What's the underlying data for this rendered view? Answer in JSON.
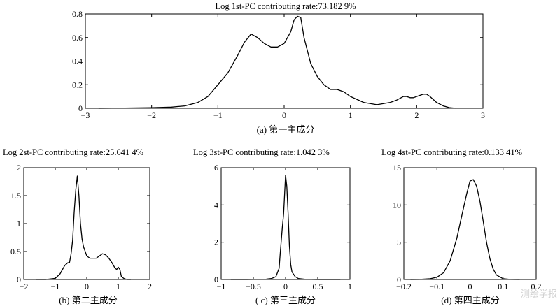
{
  "chart_data": [
    {
      "type": "line",
      "title": "Log 1st-PC   contributing rate:73.182 9%",
      "caption": "(a) 第一主成分",
      "xlim": [
        -3,
        3
      ],
      "ylim": [
        0,
        0.8
      ],
      "xticks": [
        "−3",
        "−2",
        "−1",
        "0",
        "1",
        "2",
        "3"
      ],
      "xtick_values": [
        -3,
        -2,
        -1,
        0,
        1,
        2,
        3
      ],
      "yticks": [
        "0",
        "0.2",
        "0.4",
        "0.6",
        "0.8"
      ],
      "ytick_values": [
        0,
        0.2,
        0.4,
        0.6,
        0.8
      ],
      "series": [
        {
          "x": [
            -2.8,
            -2.4,
            -2.0,
            -1.7,
            -1.5,
            -1.3,
            -1.15,
            -1.0,
            -0.85,
            -0.7,
            -0.6,
            -0.5,
            -0.4,
            -0.3,
            -0.2,
            -0.1,
            0.0,
            0.1,
            0.15,
            0.2,
            0.25,
            0.3,
            0.4,
            0.5,
            0.6,
            0.7,
            0.8,
            0.9,
            1.0,
            1.2,
            1.4,
            1.6,
            1.7,
            1.8,
            1.85,
            1.9,
            1.95,
            2.0,
            2.1,
            2.15,
            2.2,
            2.3,
            2.4,
            2.5,
            2.6
          ],
          "y": [
            0.0,
            0.002,
            0.005,
            0.01,
            0.02,
            0.05,
            0.1,
            0.2,
            0.3,
            0.45,
            0.56,
            0.63,
            0.6,
            0.55,
            0.52,
            0.52,
            0.55,
            0.65,
            0.75,
            0.78,
            0.77,
            0.6,
            0.38,
            0.27,
            0.2,
            0.16,
            0.16,
            0.14,
            0.1,
            0.05,
            0.03,
            0.05,
            0.07,
            0.1,
            0.1,
            0.09,
            0.09,
            0.1,
            0.12,
            0.12,
            0.1,
            0.05,
            0.02,
            0.005,
            0.0
          ]
        }
      ]
    },
    {
      "type": "line",
      "title": "Log 2st-PC  contributing rate:25.641 4%",
      "caption": "(b) 第二主成分",
      "xlim": [
        -2,
        2
      ],
      "ylim": [
        0,
        2
      ],
      "xticks": [
        "−2",
        "−1",
        "0",
        "1",
        "2"
      ],
      "xtick_values": [
        -2,
        -1,
        0,
        1,
        2
      ],
      "yticks": [
        "0",
        "0.5",
        "1",
        "1.5",
        "2"
      ],
      "ytick_values": [
        0,
        0.5,
        1,
        1.5,
        2
      ],
      "series": [
        {
          "x": [
            -1.6,
            -1.3,
            -1.0,
            -0.85,
            -0.7,
            -0.6,
            -0.55,
            -0.5,
            -0.45,
            -0.4,
            -0.35,
            -0.3,
            -0.25,
            -0.2,
            -0.15,
            -0.1,
            -0.05,
            0.0,
            0.1,
            0.2,
            0.3,
            0.4,
            0.5,
            0.6,
            0.7,
            0.8,
            0.9,
            0.95,
            1.0,
            1.05,
            1.1,
            1.2,
            1.3,
            1.4
          ],
          "y": [
            0.0,
            0.0,
            0.02,
            0.1,
            0.25,
            0.3,
            0.3,
            0.45,
            0.7,
            1.2,
            1.6,
            1.85,
            1.5,
            1.0,
            0.72,
            0.58,
            0.5,
            0.42,
            0.38,
            0.38,
            0.38,
            0.42,
            0.46,
            0.44,
            0.38,
            0.3,
            0.2,
            0.18,
            0.22,
            0.18,
            0.05,
            0.01,
            0.0,
            0.0
          ]
        }
      ]
    },
    {
      "type": "line",
      "title": "Log 3st-PC  contributing rate:1.042 3%",
      "caption": "( c) 第三主成分",
      "xlim": [
        -1,
        1
      ],
      "ylim": [
        0,
        6
      ],
      "xticks": [
        "−1",
        "−0.5",
        "0",
        "0.5",
        "1"
      ],
      "xtick_values": [
        -1,
        -0.5,
        0,
        0.5,
        1
      ],
      "yticks": [
        "0",
        "2",
        "4",
        "6"
      ],
      "ytick_values": [
        0,
        2,
        4,
        6
      ],
      "series": [
        {
          "x": [
            -0.85,
            -0.6,
            -0.4,
            -0.3,
            -0.22,
            -0.15,
            -0.1,
            -0.08,
            -0.05,
            -0.03,
            0.0,
            0.02,
            0.04,
            0.06,
            0.08,
            0.1,
            0.15,
            0.2,
            0.3,
            0.5,
            0.85
          ],
          "y": [
            0.0,
            0.0,
            0.01,
            0.02,
            0.05,
            0.15,
            0.6,
            1.5,
            2.8,
            3.5,
            5.6,
            5.0,
            3.5,
            1.8,
            0.8,
            0.4,
            0.15,
            0.05,
            0.01,
            0.0,
            0.0
          ]
        }
      ]
    },
    {
      "type": "line",
      "title": "Log 4st-PC  contributing rate:0.133 41%",
      "caption": "(d) 第四主成分",
      "xlim": [
        -0.2,
        0.2
      ],
      "ylim": [
        0,
        15
      ],
      "xticks": [
        "−0.2",
        "−0.1",
        "0",
        "0.1",
        "0.2"
      ],
      "xtick_values": [
        -0.2,
        -0.1,
        0,
        0.1,
        0.2
      ],
      "yticks": [
        "0",
        "5",
        "10",
        "15"
      ],
      "ytick_values": [
        0,
        5,
        10,
        15
      ],
      "series": [
        {
          "x": [
            -0.18,
            -0.15,
            -0.12,
            -0.1,
            -0.08,
            -0.06,
            -0.04,
            -0.02,
            -0.01,
            0.0,
            0.01,
            0.02,
            0.03,
            0.04,
            0.05,
            0.06,
            0.07,
            0.08,
            0.1,
            0.12,
            0.15
          ],
          "y": [
            0.0,
            0.02,
            0.1,
            0.3,
            0.9,
            2.5,
            5.5,
            9.5,
            11.5,
            13.2,
            13.4,
            12.5,
            10.5,
            7.8,
            5.0,
            2.8,
            1.4,
            0.6,
            0.1,
            0.02,
            0.0
          ]
        }
      ]
    }
  ],
  "watermark": "测绘学报"
}
